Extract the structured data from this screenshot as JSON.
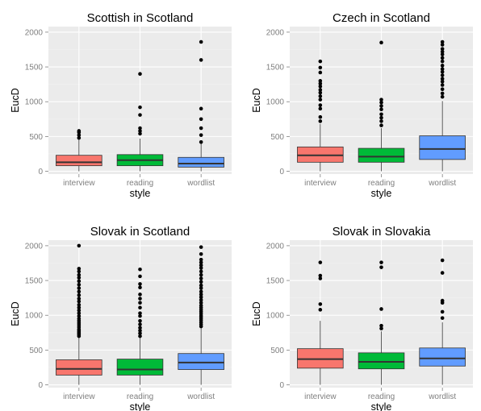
{
  "chart_data": [
    {
      "type": "boxplot",
      "title": "Scottish in Scotland",
      "xlabel": "style",
      "ylabel": "EucD",
      "ylim": [
        -40,
        2080
      ],
      "yticks": [
        0,
        500,
        1000,
        1500,
        2000
      ],
      "categories": [
        "interview",
        "reading",
        "wordlist"
      ],
      "series": [
        {
          "category": "interview",
          "color": "#F8766D",
          "whisker_low": 0,
          "q1": 80,
          "median": 130,
          "q3": 230,
          "whisker_high": 460,
          "outliers": [
            480,
            520,
            560,
            580
          ]
        },
        {
          "category": "reading",
          "color": "#00BA38",
          "whisker_low": 0,
          "q1": 80,
          "median": 160,
          "q3": 240,
          "whisker_high": 470,
          "outliers": [
            540,
            580,
            620,
            810,
            920,
            1400
          ]
        },
        {
          "category": "wordlist",
          "color": "#619CFF",
          "whisker_low": 0,
          "q1": 60,
          "median": 110,
          "q3": 200,
          "whisker_high": 400,
          "outliers": [
            420,
            520,
            620,
            750,
            900,
            1600,
            1860
          ]
        }
      ]
    },
    {
      "type": "boxplot",
      "title": "Czech in Scotland",
      "xlabel": "style",
      "ylabel": "EucD",
      "ylim": [
        -40,
        2080
      ],
      "yticks": [
        0,
        500,
        1000,
        1500,
        2000
      ],
      "categories": [
        "interview",
        "reading",
        "wordlist"
      ],
      "series": [
        {
          "category": "interview",
          "color": "#F8766D",
          "whisker_low": 0,
          "q1": 130,
          "median": 230,
          "q3": 350,
          "whisker_high": 680,
          "outliers": [
            720,
            780,
            900,
            950,
            1030,
            1080,
            1130,
            1170,
            1220,
            1260,
            1300,
            1420,
            1490,
            1580
          ]
        },
        {
          "category": "reading",
          "color": "#00BA38",
          "whisker_low": 0,
          "q1": 130,
          "median": 210,
          "q3": 330,
          "whisker_high": 620,
          "outliers": [
            660,
            720,
            770,
            820,
            890,
            940,
            990,
            1030,
            1850
          ]
        },
        {
          "category": "wordlist",
          "color": "#619CFF",
          "whisker_low": 0,
          "q1": 170,
          "median": 320,
          "q3": 510,
          "whisker_high": 1010,
          "outliers": [
            1070,
            1120,
            1180,
            1240,
            1290,
            1330,
            1380,
            1430,
            1470,
            1520,
            1580,
            1630,
            1680,
            1720,
            1760,
            1820,
            1860
          ]
        }
      ]
    },
    {
      "type": "boxplot",
      "title": "Slovak in Scotland",
      "xlabel": "style",
      "ylabel": "EucD",
      "ylim": [
        -40,
        2080
      ],
      "yticks": [
        0,
        500,
        1000,
        1500,
        2000
      ],
      "categories": [
        "interview",
        "reading",
        "wordlist"
      ],
      "series": [
        {
          "category": "interview",
          "color": "#F8766D",
          "whisker_low": 0,
          "q1": 140,
          "median": 230,
          "q3": 360,
          "whisker_high": 680,
          "outliers": [
            700,
            720,
            740,
            760,
            780,
            800,
            830,
            860,
            890,
            920,
            950,
            990,
            1030,
            1070,
            1110,
            1150,
            1200,
            1240,
            1290,
            1340,
            1390,
            1440,
            1490,
            1540,
            1580,
            1630,
            1670,
            2000
          ]
        },
        {
          "category": "reading",
          "color": "#00BA38",
          "whisker_low": 0,
          "q1": 140,
          "median": 220,
          "q3": 370,
          "whisker_high": 680,
          "outliers": [
            700,
            740,
            780,
            820,
            870,
            920,
            990,
            1030,
            1110,
            1180,
            1240,
            1300,
            1400,
            1450,
            1560,
            1660
          ]
        },
        {
          "category": "wordlist",
          "color": "#619CFF",
          "whisker_low": 0,
          "q1": 220,
          "median": 320,
          "q3": 450,
          "whisker_high": 820,
          "outliers": [
            840,
            870,
            900,
            930,
            960,
            990,
            1020,
            1050,
            1080,
            1110,
            1140,
            1180,
            1220,
            1260,
            1300,
            1340,
            1390,
            1430,
            1480,
            1530,
            1580,
            1630,
            1680,
            1720,
            1760,
            1800,
            1880,
            1980
          ]
        }
      ]
    },
    {
      "type": "boxplot",
      "title": "Slovak in Slovakia",
      "xlabel": "style",
      "ylabel": "EucD",
      "ylim": [
        -40,
        2080
      ],
      "yticks": [
        0,
        500,
        1000,
        1500,
        2000
      ],
      "categories": [
        "interview",
        "reading",
        "wordlist"
      ],
      "series": [
        {
          "category": "interview",
          "color": "#F8766D",
          "whisker_low": 0,
          "q1": 240,
          "median": 370,
          "q3": 520,
          "whisker_high": 920,
          "outliers": [
            1080,
            1160,
            1530,
            1570,
            1760
          ]
        },
        {
          "category": "reading",
          "color": "#00BA38",
          "whisker_low": 0,
          "q1": 230,
          "median": 330,
          "q3": 460,
          "whisker_high": 770,
          "outliers": [
            810,
            850,
            1090,
            1690,
            1760
          ]
        },
        {
          "category": "wordlist",
          "color": "#619CFF",
          "whisker_low": 0,
          "q1": 270,
          "median": 380,
          "q3": 530,
          "whisker_high": 900,
          "outliers": [
            960,
            1050,
            1180,
            1210,
            1610,
            1790
          ]
        }
      ]
    }
  ],
  "style": {
    "panel_background": "#EBEBEB",
    "grid_major": "#FFFFFF",
    "grid_minor": "#F2F2F2",
    "axis_text": "#7F7F7F",
    "outline": "#333333",
    "outlier": "#000000"
  }
}
